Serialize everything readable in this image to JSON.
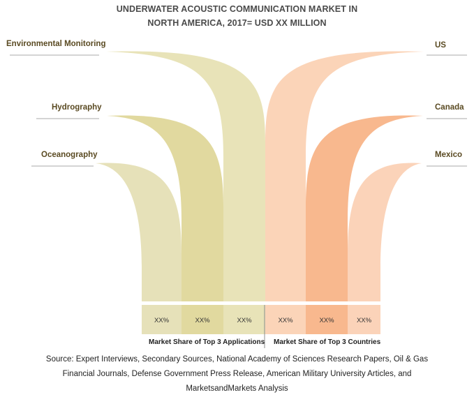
{
  "chart_data": {
    "type": "bar",
    "title_line1": "UNDERWATER ACOUSTIC COMMUNICATION MARKET IN",
    "title_line2": "NORTH AMERICA, 2017= USD XX MILLION",
    "groups": [
      {
        "name": "Market Share of Top 3 Applications",
        "categories": [
          "Environmental Monitoring",
          "Hydrography",
          "Oceanography"
        ],
        "value_labels": [
          "XX%",
          "XX%",
          "XX%"
        ],
        "colors": [
          "#e8e3b8",
          "#e1d99f",
          "#e6e1b9"
        ]
      },
      {
        "name": "Market Share of Top 3 Countries",
        "categories": [
          "US",
          "Canada",
          "Mexico"
        ],
        "value_labels": [
          "XX%",
          "XX%",
          "XX%"
        ],
        "colors": [
          "#fbd4b8",
          "#f8b88e",
          "#fbd3b9"
        ]
      }
    ],
    "source": [
      "Source: Expert Interviews, Secondary Sources, National Academy of Sciences Research Papers, Oil & Gas",
      "Financial Journals, Defense Government Press Release, American Military University Articles, and",
      "MarketsandMarkets Analysis"
    ]
  }
}
